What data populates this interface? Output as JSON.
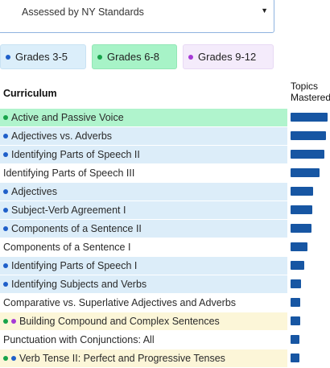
{
  "standard_select": {
    "value": "Assessed by NY Standards"
  },
  "grade_filters": [
    {
      "label": "Grades 3-5",
      "dot_color": "#1f5fc9"
    },
    {
      "label": "Grades 6-8",
      "dot_color": "#17a34a"
    },
    {
      "label": "Grades 9-12",
      "dot_color": "#a63ad6"
    }
  ],
  "table": {
    "header_curriculum": "Curriculum",
    "header_topics_line1": "Topics",
    "header_topics_line2": "Mastered",
    "rows": [
      {
        "label": "Active and Passive Voice",
        "dots": [
          "#17a34a"
        ],
        "bg": "green",
        "mastered": 1.0
      },
      {
        "label": "Adjectives vs. Adverbs",
        "dots": [
          "#1f5fc9"
        ],
        "bg": "blue",
        "mastered": 0.96
      },
      {
        "label": "Identifying Parts of Speech II",
        "dots": [
          "#1f5fc9"
        ],
        "bg": "blue",
        "mastered": 0.92
      },
      {
        "label": "Identifying Parts of Speech III",
        "dots": [],
        "bg": "white",
        "mastered": 0.78
      },
      {
        "label": "Adjectives",
        "dots": [
          "#1f5fc9"
        ],
        "bg": "blue",
        "mastered": 0.6
      },
      {
        "label": "Subject-Verb Agreement I",
        "dots": [
          "#1f5fc9"
        ],
        "bg": "blue",
        "mastered": 0.58
      },
      {
        "label": "Components of a Sentence II",
        "dots": [
          "#1f5fc9"
        ],
        "bg": "blue",
        "mastered": 0.56
      },
      {
        "label": "Components of a Sentence I",
        "dots": [],
        "bg": "white",
        "mastered": 0.46
      },
      {
        "label": "Identifying Parts of Speech I",
        "dots": [
          "#1f5fc9"
        ],
        "bg": "blue",
        "mastered": 0.36
      },
      {
        "label": "Identifying Subjects and Verbs",
        "dots": [
          "#1f5fc9"
        ],
        "bg": "blue",
        "mastered": 0.28
      },
      {
        "label": "Comparative vs. Superlative Adjectives and Adverbs",
        "dots": [],
        "bg": "white",
        "mastered": 0.26
      },
      {
        "label": "Building Compound and Complex Sentences",
        "dots": [
          "#17a34a",
          "#a63ad6"
        ],
        "bg": "yellow",
        "mastered": 0.26
      },
      {
        "label": "Punctuation with Conjunctions: All",
        "dots": [],
        "bg": "white",
        "mastered": 0.24
      },
      {
        "label": "Verb Tense II: Perfect and Progressive Tenses",
        "dots": [
          "#17a34a",
          "#1f5fc9"
        ],
        "bg": "yellow",
        "mastered": 0.24
      }
    ]
  }
}
